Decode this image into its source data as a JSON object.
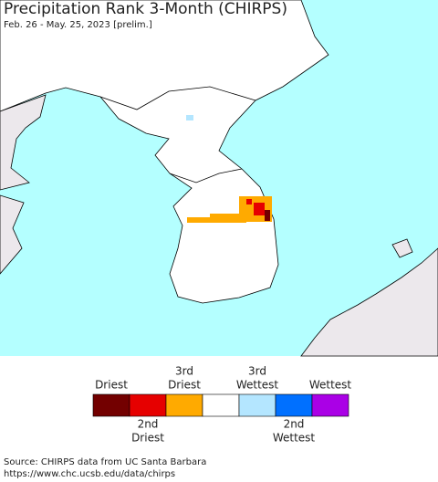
{
  "header": {
    "title": "Precipitation Rank 3-Month (CHIRPS)",
    "subtitle": "Feb. 26 - May. 25, 2023 [prelim.]"
  },
  "legend": {
    "items": [
      {
        "lines": [
          "Driest"
        ],
        "color": "#730000",
        "position": "above"
      },
      {
        "lines": [
          "2nd",
          "Driest"
        ],
        "color": "#e60000",
        "position": "below"
      },
      {
        "lines": [
          "3rd",
          "Driest"
        ],
        "color": "#ffaa00",
        "position": "above"
      },
      {
        "lines": [],
        "color": "#ffffff",
        "position": "none"
      },
      {
        "lines": [
          "3rd",
          "Wettest"
        ],
        "color": "#b4e6ff",
        "position": "above"
      },
      {
        "lines": [
          "2nd",
          "Wettest"
        ],
        "color": "#0070ff",
        "position": "below"
      },
      {
        "lines": [
          "Wettest"
        ],
        "color": "#aa00e6",
        "position": "above"
      }
    ]
  },
  "footer": {
    "source": [
      "Source: CHIRPS data from UC Santa Barbara",
      "https://www.chc.ucsb.edu/data/chirps"
    ]
  }
}
